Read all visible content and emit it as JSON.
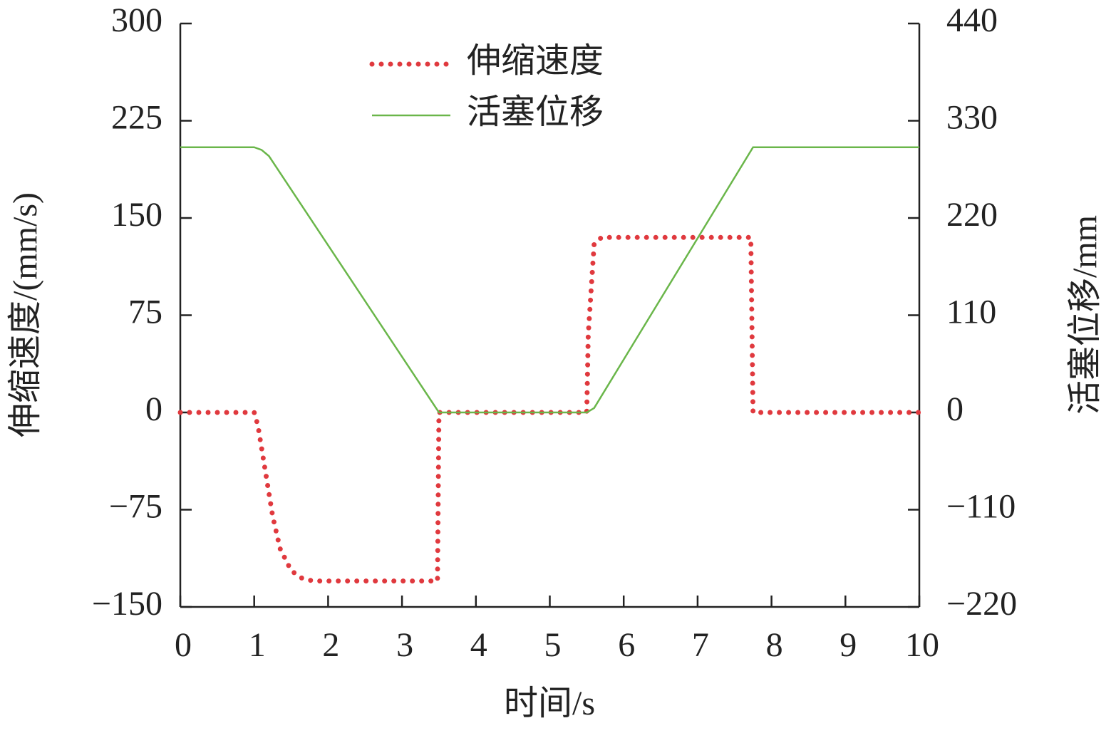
{
  "chart_data": {
    "type": "line",
    "xlabel": "时间/s",
    "ylabel": "伸缩速度/(mm/s)",
    "y2label": "活塞位移/mm",
    "xlim": [
      0,
      10
    ],
    "xticks": [
      0,
      1,
      2,
      3,
      4,
      5,
      6,
      7,
      8,
      9,
      10
    ],
    "ylim": [
      -150,
      300
    ],
    "yticks": [
      300,
      225,
      150,
      75,
      0,
      {
        "value": -75,
        "label": "−75"
      },
      {
        "value": -150,
        "label": "−150"
      }
    ],
    "y2lim": [
      -220,
      440
    ],
    "y2ticks": [
      440,
      330,
      220,
      110,
      0,
      {
        "value": -110,
        "label": "−110"
      },
      {
        "value": -220,
        "label": "−220"
      }
    ],
    "legend": "upper center",
    "series": [
      {
        "name": "伸缩速度",
        "color": "#e0393e",
        "style": "dotted",
        "x": [
          0,
          1.0,
          1.05,
          1.15,
          1.25,
          1.35,
          1.5,
          1.65,
          1.8,
          3.48,
          3.5,
          5.5,
          5.52,
          5.6,
          5.7,
          7.72,
          7.75,
          10
        ],
        "values": [
          0,
          0,
          -10,
          -45,
          -80,
          -105,
          -122,
          -128,
          -130,
          -130,
          0,
          0,
          60,
          130,
          135,
          135,
          0,
          0
        ]
      },
      {
        "name": "活塞位移",
        "color": "#6ab64a",
        "style": "solid",
        "axis": "y2",
        "x": [
          0,
          1.0,
          1.1,
          1.2,
          3.5,
          5.5,
          5.6,
          7.75,
          10
        ],
        "values": [
          300,
          300,
          297,
          290,
          0,
          0,
          5,
          300,
          300
        ]
      }
    ]
  }
}
